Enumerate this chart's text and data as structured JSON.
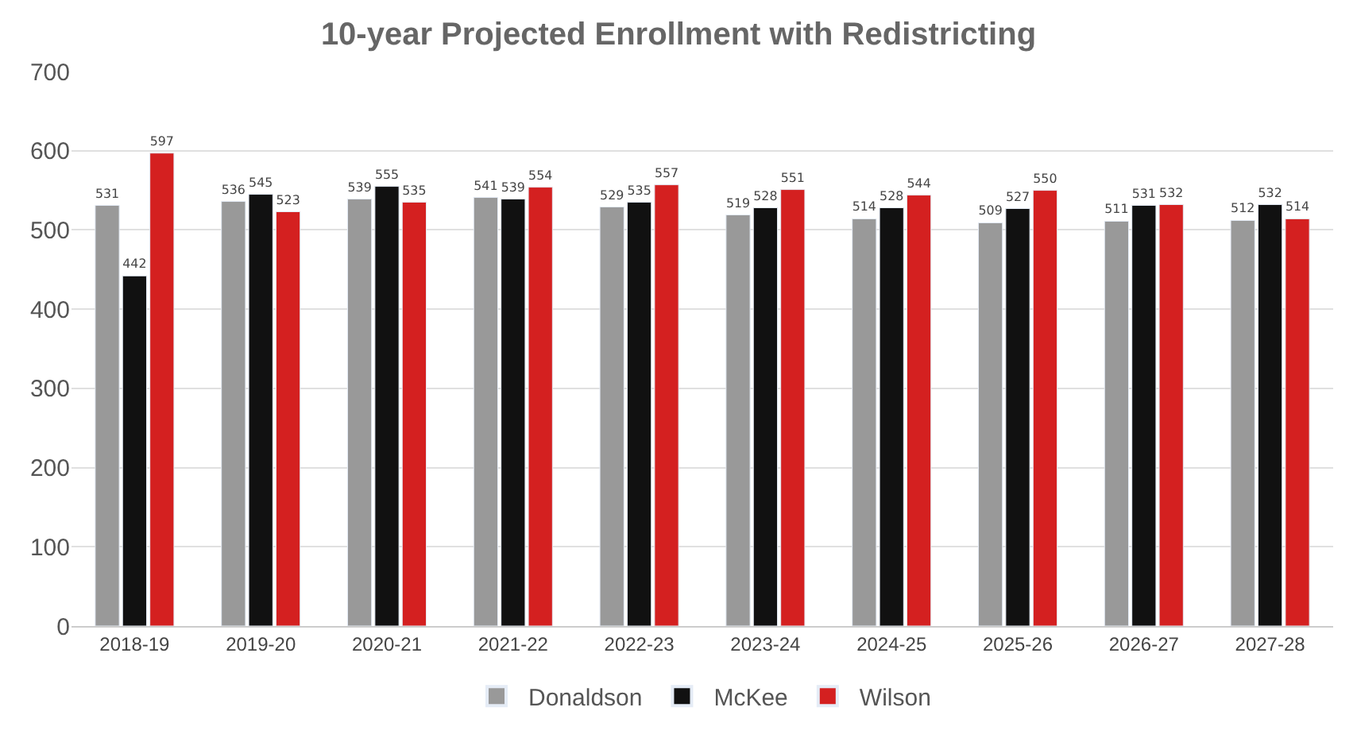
{
  "chart_data": {
    "type": "bar",
    "title": "10-year Projected Enrollment with Redistricting",
    "categories": [
      "2018-19",
      "2019-20",
      "2020-21",
      "2021-22",
      "2022-23",
      "2023-24",
      "2024-25",
      "2025-26",
      "2026-27",
      "2027-28"
    ],
    "series": [
      {
        "name": "Donaldson",
        "color": "#999999",
        "values": [
          531,
          536,
          539,
          541,
          529,
          519,
          514,
          509,
          511,
          512
        ]
      },
      {
        "name": "McKee",
        "color": "#111111",
        "values": [
          442,
          545,
          555,
          539,
          535,
          528,
          528,
          527,
          531,
          532
        ]
      },
      {
        "name": "Wilson",
        "color": "#d42020",
        "values": [
          597,
          523,
          535,
          554,
          557,
          551,
          544,
          550,
          532,
          514
        ]
      }
    ],
    "ylim": [
      0,
      700
    ],
    "yticks": [
      0,
      100,
      200,
      300,
      400,
      500,
      600,
      700
    ],
    "grid": "y",
    "legend": "bottom",
    "data_labels": true
  }
}
